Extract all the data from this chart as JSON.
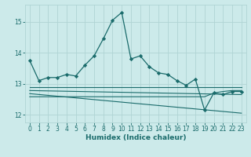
{
  "xlabel": "Humidex (Indice chaleur)",
  "bg_color": "#cceaea",
  "grid_color": "#b0d4d4",
  "line_color": "#1a6b6b",
  "xlim": [
    -0.5,
    23.5
  ],
  "ylim": [
    11.75,
    15.55
  ],
  "yticks": [
    12,
    13,
    14,
    15
  ],
  "xticks": [
    0,
    1,
    2,
    3,
    4,
    5,
    6,
    7,
    8,
    9,
    10,
    11,
    12,
    13,
    14,
    15,
    16,
    17,
    18,
    19,
    20,
    21,
    22,
    23
  ],
  "main_x": [
    0,
    1,
    2,
    3,
    4,
    5,
    6,
    7,
    8,
    9,
    10,
    11,
    12,
    13,
    14,
    15,
    16,
    17,
    18,
    19,
    20,
    21,
    22,
    23
  ],
  "main_y": [
    13.75,
    13.1,
    13.2,
    13.2,
    13.3,
    13.25,
    13.6,
    13.9,
    14.45,
    15.05,
    15.3,
    13.8,
    13.9,
    13.55,
    13.35,
    13.3,
    13.1,
    12.95,
    13.15,
    12.15,
    12.7,
    12.65,
    12.75,
    12.75
  ],
  "line2_x": [
    0,
    23
  ],
  "line2_y": [
    12.88,
    12.88
  ],
  "line3_x": [
    0,
    23
  ],
  "line3_y": [
    12.78,
    12.65
  ],
  "line4_x": [
    0,
    23
  ],
  "line4_y": [
    12.68,
    12.05
  ],
  "line5_x": [
    0,
    19,
    20,
    21,
    22,
    23
  ],
  "line5_y": [
    12.58,
    12.58,
    12.7,
    12.75,
    12.78,
    12.78
  ]
}
